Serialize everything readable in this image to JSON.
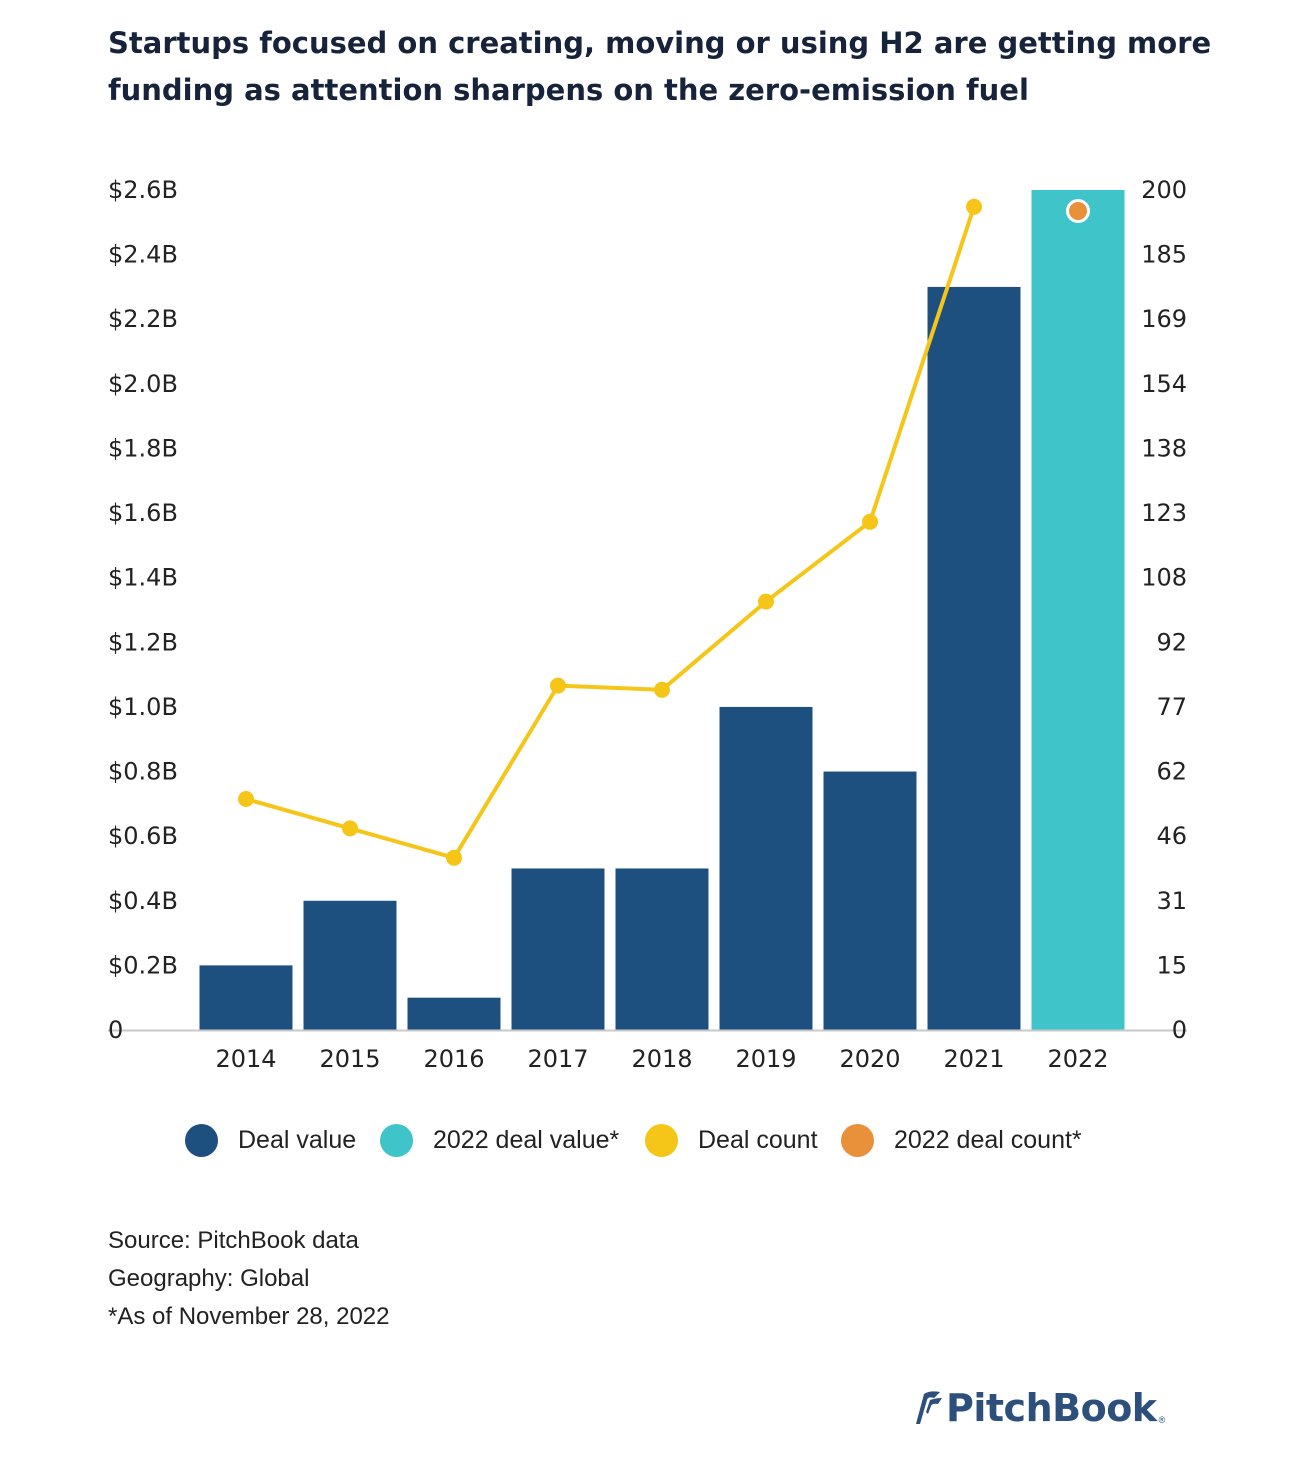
{
  "title_line1": "Startups focused on creating, moving or using H2 are getting more",
  "title_line2": "funding as attention sharpens on the zero-emission fuel",
  "colors": {
    "deal_value": "#1e507f",
    "deal_value_2022": "#3fc4c9",
    "deal_count": "#f5c518",
    "deal_count_2022": "#e8913a"
  },
  "chart_data": {
    "type": "bar",
    "categories": [
      "2014",
      "2015",
      "2016",
      "2017",
      "2018",
      "2019",
      "2020",
      "2021",
      "2022"
    ],
    "series": [
      {
        "name": "Deal value",
        "axis": "left",
        "type": "bar",
        "values": [
          0.2,
          0.4,
          0.1,
          0.5,
          0.5,
          1.0,
          0.8,
          2.3,
          2.6
        ]
      },
      {
        "name": "Deal count",
        "axis": "right",
        "type": "line",
        "values": [
          55,
          48,
          41,
          82,
          81,
          102,
          121,
          196,
          195
        ]
      }
    ],
    "legend": [
      "Deal value",
      "2022 deal value*",
      "Deal count",
      "2022 deal count*"
    ],
    "y_left_ticks": [
      "0",
      "$0.2B",
      "$0.4B",
      "$0.6B",
      "$0.8B",
      "$1.0B",
      "$1.2B",
      "$1.4B",
      "$1.6B",
      "$1.8B",
      "$2.0B",
      "$2.2B",
      "$2.4B",
      "$2.6B"
    ],
    "y_right_ticks": [
      "0",
      "15",
      "31",
      "46",
      "62",
      "77",
      "92",
      "108",
      "123",
      "138",
      "154",
      "169",
      "185",
      "200"
    ],
    "y_left_lim": [
      0,
      2.6
    ],
    "y_right_lim": [
      0,
      200
    ],
    "grid": false,
    "legend_position": "bottom"
  },
  "notes": {
    "source": "Source: PitchBook data",
    "geography": "Geography: Global",
    "asof": "*As of November 28, 2022"
  },
  "logo": {
    "text": "PitchBook",
    "reg": "®"
  }
}
